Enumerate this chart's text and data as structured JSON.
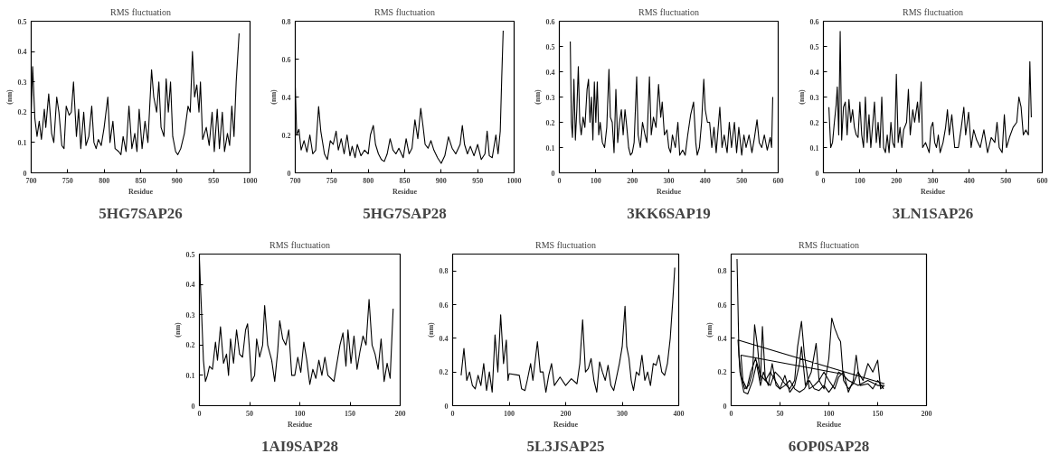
{
  "chart_data": [
    {
      "type": "line",
      "title": "RMS fluctuation",
      "subtitle": "5HG7SAP26",
      "xlabel": "Residue",
      "ylabel": "(nm)",
      "xlim": [
        700,
        1000
      ],
      "ylim": [
        0,
        0.5
      ],
      "xticks": [
        700,
        750,
        800,
        850,
        900,
        950,
        1000
      ],
      "yticks": [
        0,
        0.1,
        0.2,
        0.3,
        0.4,
        0.5
      ],
      "series": [
        {
          "color": "#000000",
          "x": [
            700,
            702,
            705,
            708,
            711,
            714,
            718,
            720,
            724,
            728,
            731,
            735,
            738,
            742,
            745,
            748,
            752,
            755,
            758,
            762,
            765,
            768,
            772,
            775,
            779,
            783,
            786,
            789,
            792,
            796,
            800,
            805,
            808,
            812,
            815,
            820,
            823,
            826,
            830,
            834,
            838,
            842,
            845,
            848,
            852,
            856,
            860,
            865,
            868,
            872,
            875,
            878,
            882,
            885,
            888,
            891,
            894,
            898,
            901,
            905,
            910,
            915,
            918,
            921,
            924,
            927,
            930,
            932,
            935,
            940,
            944,
            948,
            951,
            955,
            958,
            962,
            965,
            969,
            972,
            975,
            978,
            981,
            985
          ],
          "values": [
            0.2,
            0.35,
            0.18,
            0.12,
            0.17,
            0.11,
            0.21,
            0.15,
            0.26,
            0.13,
            0.1,
            0.25,
            0.2,
            0.09,
            0.08,
            0.22,
            0.19,
            0.2,
            0.3,
            0.12,
            0.21,
            0.08,
            0.2,
            0.09,
            0.12,
            0.22,
            0.1,
            0.08,
            0.11,
            0.09,
            0.15,
            0.25,
            0.1,
            0.17,
            0.08,
            0.07,
            0.06,
            0.12,
            0.07,
            0.22,
            0.08,
            0.13,
            0.07,
            0.21,
            0.08,
            0.17,
            0.1,
            0.34,
            0.25,
            0.2,
            0.3,
            0.15,
            0.12,
            0.31,
            0.2,
            0.3,
            0.12,
            0.07,
            0.06,
            0.08,
            0.13,
            0.22,
            0.2,
            0.4,
            0.25,
            0.29,
            0.2,
            0.3,
            0.11,
            0.15,
            0.09,
            0.2,
            0.07,
            0.21,
            0.08,
            0.2,
            0.07,
            0.13,
            0.09,
            0.22,
            0.12,
            0.3,
            0.46
          ]
        }
      ]
    },
    {
      "type": "line",
      "title": "RMS fluctuation",
      "subtitle": "5HG7SAP28",
      "xlabel": "Residue",
      "ylabel": "(nm)",
      "xlim": [
        700,
        1000
      ],
      "ylim": [
        0,
        0.8
      ],
      "xticks": [
        700,
        750,
        800,
        850,
        900,
        950,
        1000
      ],
      "yticks": [
        0,
        0.2,
        0.4,
        0.6,
        0.8
      ],
      "series": [
        {
          "color": "#000000",
          "x": [
            700,
            702,
            705,
            708,
            712,
            716,
            720,
            724,
            728,
            732,
            735,
            740,
            744,
            748,
            752,
            756,
            759,
            763,
            767,
            771,
            775,
            778,
            782,
            785,
            790,
            795,
            800,
            803,
            807,
            810,
            814,
            818,
            822,
            826,
            830,
            834,
            838,
            842,
            848,
            852,
            856,
            860,
            864,
            868,
            872,
            875,
            878,
            882,
            886,
            890,
            895,
            900,
            905,
            910,
            915,
            920,
            926,
            929,
            932,
            936,
            940,
            945,
            950,
            955,
            960,
            963,
            966,
            970,
            975,
            978,
            981,
            983,
            985
          ],
          "values": [
            0.45,
            0.2,
            0.23,
            0.12,
            0.17,
            0.11,
            0.2,
            0.1,
            0.12,
            0.35,
            0.22,
            0.1,
            0.07,
            0.17,
            0.15,
            0.22,
            0.12,
            0.18,
            0.1,
            0.2,
            0.09,
            0.14,
            0.08,
            0.15,
            0.09,
            0.12,
            0.1,
            0.2,
            0.25,
            0.15,
            0.1,
            0.07,
            0.06,
            0.1,
            0.18,
            0.12,
            0.1,
            0.13,
            0.08,
            0.18,
            0.1,
            0.13,
            0.28,
            0.18,
            0.34,
            0.25,
            0.15,
            0.13,
            0.17,
            0.12,
            0.08,
            0.05,
            0.09,
            0.19,
            0.13,
            0.1,
            0.15,
            0.25,
            0.15,
            0.1,
            0.14,
            0.09,
            0.15,
            0.07,
            0.1,
            0.22,
            0.09,
            0.08,
            0.2,
            0.1,
            0.22,
            0.5,
            0.75
          ]
        }
      ]
    },
    {
      "type": "line",
      "title": "RMS fluctuation",
      "subtitle": "3KK6SAP19",
      "xlabel": "Residue",
      "ylabel": "(nm)",
      "xlim": [
        0,
        600
      ],
      "ylim": [
        0,
        0.6
      ],
      "xticks": [
        0,
        100,
        200,
        300,
        400,
        500,
        600
      ],
      "yticks": [
        0,
        0.1,
        0.2,
        0.3,
        0.4,
        0.5,
        0.6
      ],
      "series": [
        {
          "color": "#000000",
          "x": [
            30,
            33,
            36,
            40,
            44,
            48,
            52,
            56,
            60,
            65,
            70,
            76,
            80,
            84,
            88,
            92,
            96,
            100,
            104,
            108,
            112,
            118,
            124,
            130,
            136,
            140,
            145,
            150,
            155,
            160,
            165,
            170,
            175,
            180,
            185,
            190,
            195,
            200,
            205,
            212,
            216,
            222,
            228,
            235,
            240,
            247,
            252,
            258,
            265,
            272,
            278,
            282,
            288,
            295,
            300,
            305,
            310,
            318,
            325,
            330,
            338,
            345,
            352,
            360,
            368,
            374,
            378,
            384,
            390,
            396,
            400,
            406,
            412,
            418,
            424,
            430,
            440,
            446,
            452,
            460,
            466,
            472,
            480,
            486,
            492,
            500,
            506,
            512,
            520,
            528,
            535,
            542,
            548,
            555,
            562,
            570,
            578,
            582,
            585
          ],
          "values": [
            0.52,
            0.2,
            0.14,
            0.37,
            0.13,
            0.25,
            0.42,
            0.2,
            0.15,
            0.22,
            0.18,
            0.33,
            0.37,
            0.2,
            0.3,
            0.13,
            0.36,
            0.2,
            0.36,
            0.15,
            0.2,
            0.12,
            0.1,
            0.18,
            0.41,
            0.22,
            0.2,
            0.08,
            0.33,
            0.12,
            0.2,
            0.25,
            0.15,
            0.25,
            0.18,
            0.1,
            0.07,
            0.08,
            0.12,
            0.38,
            0.15,
            0.1,
            0.2,
            0.15,
            0.12,
            0.38,
            0.15,
            0.22,
            0.18,
            0.35,
            0.22,
            0.28,
            0.15,
            0.17,
            0.1,
            0.08,
            0.15,
            0.1,
            0.2,
            0.07,
            0.09,
            0.07,
            0.15,
            0.23,
            0.28,
            0.12,
            0.07,
            0.1,
            0.2,
            0.37,
            0.25,
            0.2,
            0.2,
            0.1,
            0.18,
            0.08,
            0.26,
            0.1,
            0.15,
            0.08,
            0.2,
            0.1,
            0.2,
            0.08,
            0.18,
            0.07,
            0.15,
            0.1,
            0.15,
            0.08,
            0.14,
            0.21,
            0.12,
            0.1,
            0.15,
            0.09,
            0.14,
            0.1,
            0.3
          ]
        }
      ]
    },
    {
      "type": "line",
      "title": "RMS fluctuation",
      "subtitle": "3LN1SAP26",
      "xlabel": "Residue",
      "ylabel": "(nm)",
      "xlim": [
        0,
        600
      ],
      "ylim": [
        0,
        0.6
      ],
      "xticks": [
        0,
        100,
        200,
        300,
        400,
        500,
        600
      ],
      "yticks": [
        0,
        0.1,
        0.2,
        0.3,
        0.4,
        0.5,
        0.6
      ],
      "series": [
        {
          "color": "#000000",
          "x": [
            15,
            20,
            25,
            30,
            35,
            38,
            42,
            46,
            50,
            55,
            60,
            65,
            70,
            75,
            80,
            85,
            90,
            95,
            100,
            105,
            110,
            115,
            120,
            125,
            130,
            140,
            145,
            150,
            155,
            160,
            165,
            170,
            175,
            180,
            185,
            190,
            195,
            200,
            205,
            210,
            215,
            220,
            228,
            233,
            238,
            245,
            250,
            258,
            262,
            268,
            272,
            280,
            290,
            295,
            300,
            305,
            310,
            315,
            320,
            328,
            335,
            340,
            345,
            352,
            360,
            370,
            378,
            385,
            390,
            398,
            405,
            412,
            420,
            430,
            440,
            450,
            460,
            470,
            476,
            482,
            490,
            496,
            502,
            510,
            520,
            530,
            536,
            542,
            548,
            555,
            562,
            566,
            570
          ],
          "values": [
            0.26,
            0.1,
            0.12,
            0.2,
            0.27,
            0.34,
            0.15,
            0.56,
            0.13,
            0.26,
            0.28,
            0.15,
            0.29,
            0.2,
            0.25,
            0.18,
            0.15,
            0.14,
            0.28,
            0.15,
            0.1,
            0.3,
            0.12,
            0.23,
            0.1,
            0.28,
            0.12,
            0.2,
            0.1,
            0.3,
            0.1,
            0.08,
            0.15,
            0.08,
            0.2,
            0.12,
            0.1,
            0.39,
            0.12,
            0.18,
            0.1,
            0.17,
            0.2,
            0.33,
            0.15,
            0.25,
            0.2,
            0.28,
            0.2,
            0.36,
            0.1,
            0.12,
            0.08,
            0.18,
            0.2,
            0.12,
            0.1,
            0.15,
            0.08,
            0.12,
            0.18,
            0.25,
            0.15,
            0.23,
            0.1,
            0.1,
            0.18,
            0.26,
            0.15,
            0.24,
            0.1,
            0.17,
            0.13,
            0.1,
            0.17,
            0.08,
            0.14,
            0.12,
            0.2,
            0.1,
            0.08,
            0.23,
            0.1,
            0.14,
            0.18,
            0.2,
            0.3,
            0.26,
            0.15,
            0.17,
            0.15,
            0.44,
            0.22
          ]
        }
      ]
    },
    {
      "type": "line",
      "title": "RMS fluctuation",
      "subtitle": "1AI9SAP28",
      "xlabel": "Residue",
      "ylabel": "(nm)",
      "xlim": [
        0,
        200
      ],
      "ylim": [
        0,
        0.5
      ],
      "xticks": [
        0,
        50,
        100,
        150,
        200
      ],
      "yticks": [
        0,
        0.1,
        0.2,
        0.3,
        0.4,
        0.5
      ],
      "series": [
        {
          "color": "#000000",
          "x": [
            0,
            2,
            4,
            6,
            8,
            10,
            13,
            16,
            18,
            21,
            24,
            27,
            29,
            31,
            34,
            37,
            40,
            43,
            46,
            48,
            50,
            52,
            55,
            57,
            60,
            63,
            65,
            68,
            72,
            75,
            78,
            80,
            83,
            86,
            89,
            92,
            95,
            98,
            101,
            104,
            107,
            110,
            113,
            116,
            119,
            122,
            125,
            128,
            131,
            134,
            137,
            140,
            143,
            146,
            148,
            151,
            154,
            157,
            160,
            163,
            166,
            169,
            172,
            175,
            178,
            181,
            184,
            187,
            190,
            193
          ],
          "values": [
            0.48,
            0.32,
            0.15,
            0.08,
            0.1,
            0.13,
            0.12,
            0.21,
            0.15,
            0.26,
            0.14,
            0.17,
            0.1,
            0.22,
            0.14,
            0.25,
            0.17,
            0.16,
            0.25,
            0.27,
            0.18,
            0.08,
            0.1,
            0.22,
            0.16,
            0.2,
            0.33,
            0.2,
            0.15,
            0.08,
            0.18,
            0.28,
            0.22,
            0.2,
            0.25,
            0.1,
            0.1,
            0.16,
            0.11,
            0.21,
            0.15,
            0.07,
            0.12,
            0.09,
            0.15,
            0.1,
            0.16,
            0.1,
            0.09,
            0.08,
            0.14,
            0.2,
            0.24,
            0.13,
            0.25,
            0.14,
            0.23,
            0.12,
            0.18,
            0.23,
            0.2,
            0.35,
            0.2,
            0.17,
            0.12,
            0.22,
            0.08,
            0.14,
            0.09,
            0.32
          ]
        }
      ]
    },
    {
      "type": "line",
      "title": "RMS fluctuation",
      "subtitle": "5L3JSAP25",
      "xlabel": "Residue",
      "ylabel": "(nm)",
      "xlim": [
        0,
        400
      ],
      "ylim": [
        0,
        0.9
      ],
      "xticks": [
        0,
        100,
        200,
        300,
        400
      ],
      "yticks": [
        0,
        0.2,
        0.4,
        0.6,
        0.8
      ],
      "series": [
        {
          "color": "#000000",
          "x": [
            15,
            20,
            25,
            30,
            35,
            40,
            45,
            50,
            55,
            60,
            65,
            70,
            75,
            80,
            85,
            90,
            95,
            98,
            100,
            118,
            122,
            128,
            132,
            138,
            142,
            150,
            155,
            160,
            165,
            170,
            175,
            180,
            190,
            200,
            210,
            220,
            225,
            230,
            235,
            240,
            245,
            250,
            255,
            260,
            265,
            270,
            275,
            280,
            285,
            290,
            295,
            300,
            305,
            308,
            312,
            316,
            320,
            325,
            330,
            335,
            340,
            345,
            350,
            355,
            360,
            365,
            370,
            375,
            380,
            385,
            390,
            393
          ],
          "values": [
            0.18,
            0.34,
            0.15,
            0.2,
            0.12,
            0.1,
            0.18,
            0.12,
            0.25,
            0.09,
            0.2,
            0.08,
            0.42,
            0.2,
            0.54,
            0.25,
            0.39,
            0.15,
            0.19,
            0.18,
            0.1,
            0.09,
            0.15,
            0.25,
            0.15,
            0.38,
            0.2,
            0.2,
            0.08,
            0.18,
            0.25,
            0.12,
            0.17,
            0.12,
            0.16,
            0.13,
            0.25,
            0.51,
            0.2,
            0.22,
            0.28,
            0.15,
            0.08,
            0.26,
            0.2,
            0.15,
            0.24,
            0.12,
            0.09,
            0.17,
            0.25,
            0.35,
            0.59,
            0.35,
            0.28,
            0.15,
            0.09,
            0.2,
            0.18,
            0.3,
            0.15,
            0.2,
            0.12,
            0.25,
            0.24,
            0.3,
            0.2,
            0.18,
            0.25,
            0.4,
            0.65,
            0.82
          ]
        }
      ]
    },
    {
      "type": "line",
      "title": "RMS fluctuation",
      "subtitle": "6OP0SAP28",
      "xlabel": "Residue",
      "ylabel": "(nm)",
      "xlim": [
        0,
        200
      ],
      "ylim": [
        0,
        0.9
      ],
      "xticks": [
        0,
        50,
        100,
        150,
        200
      ],
      "yticks": [
        0,
        0.2,
        0.4,
        0.6,
        0.8
      ],
      "series": [
        {
          "color": "#000000",
          "x": [
            6,
            8,
            10,
            14,
            18,
            22,
            24,
            27,
            30,
            32,
            35,
            40,
            45,
            50,
            55,
            60,
            65,
            68,
            72,
            75,
            80,
            85,
            90,
            95,
            100,
            103,
            106,
            110,
            112,
            115,
            120,
            125,
            130,
            135,
            140,
            145,
            150,
            153,
            157
          ],
          "values": [
            0.87,
            0.3,
            0.18,
            0.1,
            0.12,
            0.2,
            0.48,
            0.35,
            0.15,
            0.47,
            0.15,
            0.12,
            0.2,
            0.17,
            0.13,
            0.1,
            0.15,
            0.35,
            0.5,
            0.3,
            0.1,
            0.12,
            0.15,
            0.1,
            0.28,
            0.52,
            0.46,
            0.4,
            0.38,
            0.15,
            0.1,
            0.13,
            0.2,
            0.15,
            0.25,
            0.2,
            0.27,
            0.1,
            0.12
          ]
        },
        {
          "color": "#000000",
          "x": [
            157,
            7,
            9,
            13,
            17,
            22,
            26,
            30,
            33,
            38,
            42,
            46,
            50,
            55,
            60,
            65,
            70,
            72,
            76,
            82,
            87,
            90,
            95,
            100,
            106,
            110,
            115,
            120,
            125,
            128,
            132,
            140,
            145,
            150,
            156
          ],
          "values": [
            0.13,
            0.39,
            0.2,
            0.08,
            0.07,
            0.15,
            0.25,
            0.12,
            0.2,
            0.12,
            0.25,
            0.12,
            0.1,
            0.18,
            0.08,
            0.12,
            0.25,
            0.35,
            0.12,
            0.2,
            0.37,
            0.15,
            0.2,
            0.15,
            0.1,
            0.17,
            0.2,
            0.08,
            0.15,
            0.3,
            0.12,
            0.13,
            0.1,
            0.15,
            0.1
          ]
        },
        {
          "color": "#000000",
          "x": [
            112,
            10,
            12,
            16,
            20,
            25,
            30,
            35,
            40,
            45,
            50,
            55,
            60,
            65,
            70,
            75,
            80,
            85,
            90,
            95,
            100,
            105,
            110,
            115,
            120,
            130,
            140,
            150,
            156
          ],
          "values": [
            0.19,
            0.3,
            0.15,
            0.1,
            0.2,
            0.28,
            0.18,
            0.15,
            0.2,
            0.15,
            0.1,
            0.12,
            0.15,
            0.1,
            0.08,
            0.1,
            0.15,
            0.1,
            0.09,
            0.12,
            0.08,
            0.12,
            0.2,
            0.18,
            0.15,
            0.12,
            0.15,
            0.12,
            0.12
          ]
        }
      ]
    }
  ]
}
